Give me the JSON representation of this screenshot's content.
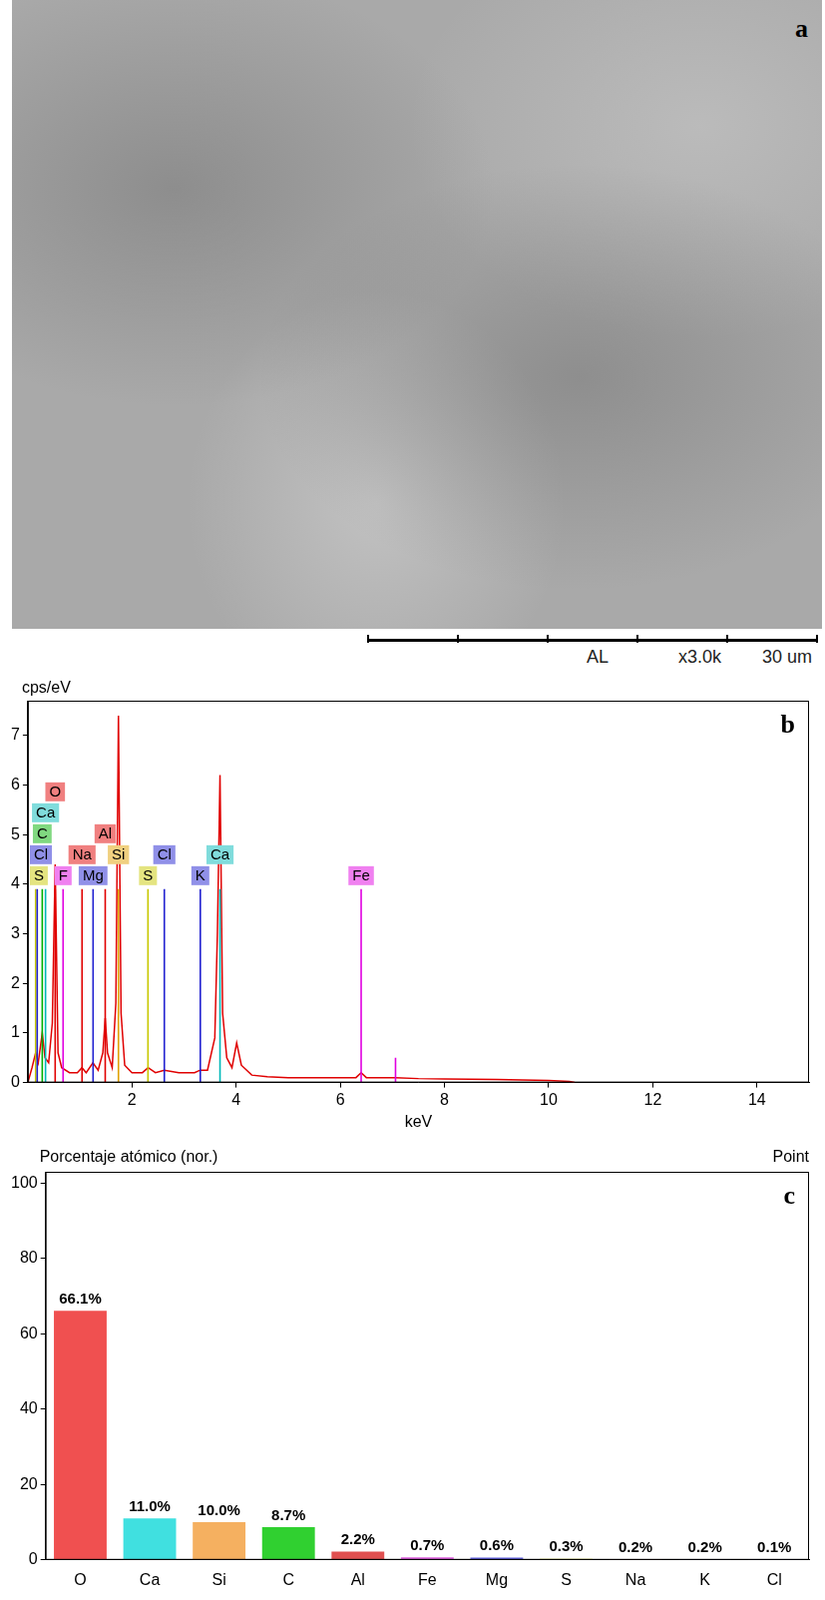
{
  "image": {
    "letter": "a",
    "scale_bar_labels": [
      "AL",
      "x3.0k",
      "30 um"
    ]
  },
  "chart_data": [
    {
      "letter": "b",
      "type": "line",
      "y_label": "cps/eV",
      "x_label": "keV",
      "color": "#e00000",
      "x": [
        0,
        0.08,
        0.15,
        0.2,
        0.277,
        0.33,
        0.4,
        0.47,
        0.525,
        0.58,
        0.65,
        0.8,
        0.95,
        1.04,
        1.12,
        1.25,
        1.35,
        1.44,
        1.486,
        1.53,
        1.62,
        1.69,
        1.74,
        1.79,
        1.86,
        2.0,
        2.2,
        2.31,
        2.45,
        2.62,
        2.9,
        3.2,
        3.31,
        3.45,
        3.59,
        3.64,
        3.69,
        3.74,
        3.82,
        3.92,
        4.01,
        4.1,
        4.3,
        4.6,
        5.0,
        5.5,
        6.0,
        6.3,
        6.4,
        6.5,
        7.06,
        7.5,
        8.0,
        9.0,
        10.0,
        10.4,
        10.5
      ],
      "values": [
        0,
        0.3,
        0.6,
        0.4,
        1.0,
        0.5,
        0.4,
        1.2,
        4.4,
        0.6,
        0.3,
        0.2,
        0.2,
        0.3,
        0.2,
        0.4,
        0.25,
        0.6,
        1.3,
        0.6,
        0.3,
        1.6,
        7.4,
        1.4,
        0.35,
        0.2,
        0.2,
        0.3,
        0.2,
        0.25,
        0.2,
        0.2,
        0.25,
        0.25,
        0.9,
        3.0,
        6.2,
        1.4,
        0.5,
        0.3,
        0.8,
        0.35,
        0.15,
        0.12,
        0.1,
        0.1,
        0.1,
        0.1,
        0.2,
        0.1,
        0.1,
        0.08,
        0.07,
        0.06,
        0.04,
        0.02,
        0
      ],
      "xlim": [
        0,
        15
      ],
      "xticks": [
        2,
        4,
        6,
        8,
        10,
        12,
        14
      ],
      "ylim": [
        0,
        7.7
      ],
      "yticks": [
        0,
        1,
        2,
        3,
        4,
        5,
        6,
        7
      ],
      "grid": false,
      "element_markers": [
        {
          "label": "S",
          "x": 0.15,
          "value": 3.9,
          "color": "#c8c800"
        },
        {
          "label": "Cl",
          "x": 0.18,
          "value": 3.9,
          "color": "#2020d0"
        },
        {
          "label": "C",
          "x": 0.277,
          "value": 3.9,
          "color": "#00b000"
        },
        {
          "label": "Ca",
          "x": 0.34,
          "value": 3.9,
          "color": "#00b8b8"
        },
        {
          "label": "O",
          "x": 0.525,
          "value": 3.9,
          "color": "#e00000"
        },
        {
          "label": "F",
          "x": 0.677,
          "value": 3.9,
          "color": "#e000e0"
        },
        {
          "label": "Na",
          "x": 1.041,
          "value": 3.9,
          "color": "#e00000"
        },
        {
          "label": "Mg",
          "x": 1.253,
          "value": 3.9,
          "color": "#2020d0"
        },
        {
          "label": "Al",
          "x": 1.486,
          "value": 3.9,
          "color": "#e00000"
        },
        {
          "label": "Si",
          "x": 1.74,
          "value": 3.9,
          "color": "#e0a000"
        },
        {
          "label": "S",
          "x": 2.307,
          "value": 3.9,
          "color": "#c8c800"
        },
        {
          "label": "Cl",
          "x": 2.621,
          "value": 3.9,
          "color": "#2020d0"
        },
        {
          "label": "K",
          "x": 3.312,
          "value": 3.9,
          "color": "#2020d0"
        },
        {
          "label": "Ca",
          "x": 3.69,
          "value": 3.9,
          "color": "#00b8b8"
        },
        {
          "label": "Fe",
          "x": 6.4,
          "value": 3.9,
          "color": "#e000e0"
        },
        {
          "label": null,
          "x": 7.06,
          "value": 0.5,
          "color": "#e000e0"
        }
      ]
    },
    {
      "letter": "c",
      "type": "bar",
      "title": "Porcentaje atómico (nor.)",
      "annotation": "Point",
      "categories": [
        "O",
        "Ca",
        "Si",
        "C",
        "Al",
        "Fe",
        "Mg",
        "S",
        "Na",
        "K",
        "Cl"
      ],
      "values": [
        66.1,
        11.0,
        10.0,
        8.7,
        2.2,
        0.7,
        0.6,
        0.3,
        0.2,
        0.2,
        0.1
      ],
      "value_labels": [
        "66.1%",
        "11.0%",
        "10.0%",
        "8.7%",
        "2.2%",
        "0.7%",
        "0.6%",
        "0.3%",
        "0.2%",
        "0.2%",
        "0.1%"
      ],
      "colors": [
        "#f05050",
        "#40e0e0",
        "#f5b060",
        "#30d030",
        "#e05050",
        "#e060e0",
        "#6060e0",
        "#e0e040",
        "#f07070",
        "#6060e0",
        "#6060e0"
      ],
      "ylim": [
        0,
        103
      ],
      "yticks": [
        0,
        20,
        40,
        60,
        80,
        100
      ],
      "data_labels": true,
      "grid": false
    }
  ]
}
